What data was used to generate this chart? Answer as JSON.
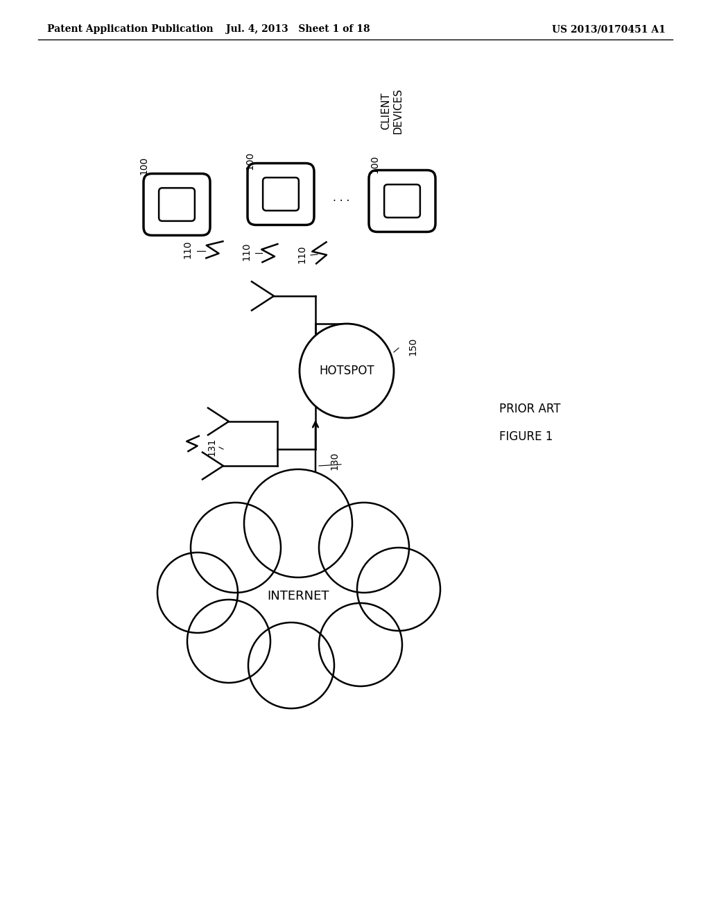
{
  "bg_color": "#ffffff",
  "header_left": "Patent Application Publication",
  "header_center": "Jul. 4, 2013   Sheet 1 of 18",
  "header_right": "US 2013/0170451 A1",
  "prior_art_text": "PRIOR ART",
  "figure_text": "FIGURE 1",
  "client_devices_label": "CLIENT\nDEVICES",
  "hotspot_label": "HOTSPOT",
  "internet_label": "INTERNET",
  "lw_device": 2.5,
  "lw_lines": 1.8,
  "lw_cloud": 1.8,
  "lw_hotspot": 2.0,
  "lw_arrow": 1.8
}
